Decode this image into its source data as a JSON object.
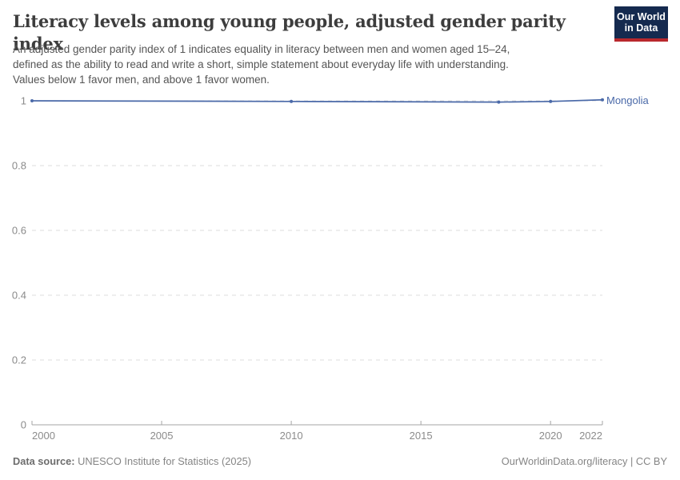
{
  "header": {
    "title": "Literacy levels among young people, adjusted gender parity index",
    "subtitle_lines": [
      "An adjusted gender parity index of 1 indicates equality in literacy between men and women aged 15–24,",
      "defined as the ability to read and write a short, simple statement about everyday life with understanding.",
      "Values below 1 favor men, and above 1 favor women."
    ],
    "logo": {
      "line1": "Our World",
      "line2": "in Data"
    }
  },
  "chart_data": {
    "type": "line",
    "title": "Literacy levels among young people, adjusted gender parity index",
    "xlabel": "",
    "ylabel": "",
    "xlim": [
      2000,
      2022
    ],
    "ylim": [
      0,
      1
    ],
    "grid": "horizontal-dashed",
    "legend_position": "end-of-line-label",
    "xticks": {
      "values": [
        2000,
        2005,
        2010,
        2015,
        2020,
        2022
      ],
      "labels": [
        "2000",
        "2005",
        "2010",
        "2015",
        "2020",
        "2022"
      ]
    },
    "yticks": {
      "values": [
        0,
        0.2,
        0.4,
        0.6,
        0.8,
        1
      ],
      "labels": [
        "0",
        "0.2",
        "0.4",
        "0.6",
        "0.8",
        "1"
      ]
    },
    "series": [
      {
        "name": "Mongolia",
        "color": "#4a69a8",
        "x": [
          2000,
          2010,
          2018,
          2020,
          2022
        ],
        "values": [
          1.0,
          0.998,
          0.996,
          0.998,
          1.003
        ]
      }
    ]
  },
  "footer": {
    "datasource_label": "Data source:",
    "datasource_value": "UNESCO Institute for Statistics (2025)",
    "credit": "OurWorldinData.org/literacy | CC BY"
  },
  "colors": {
    "line": "#4a69a8",
    "title_text": "#3d3d3d",
    "subtitle_text": "#555555",
    "tick_text": "#8b8b8b",
    "gridline": "#dcdcdc",
    "axis_line": "#a5a5a5",
    "logo_bg": "#152a4f",
    "logo_bar": "#b9282d",
    "footer_text": "#858585"
  }
}
